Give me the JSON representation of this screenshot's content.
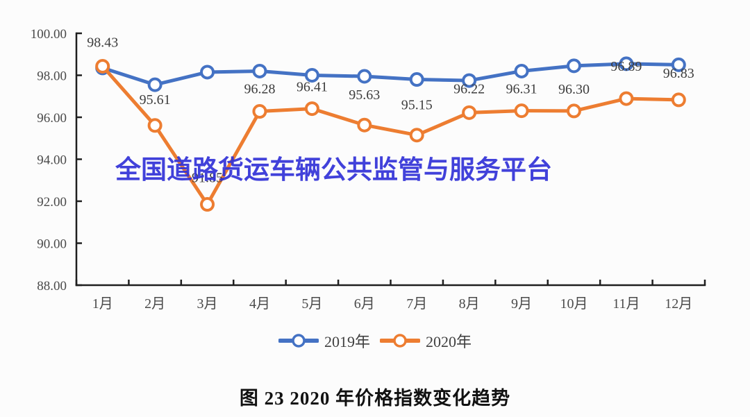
{
  "page": {
    "background": "#fcfcfc"
  },
  "watermark": {
    "text": "全国道路货运车辆公共监管与服务平台",
    "color": "#3232d8"
  },
  "caption": {
    "text": "图 23 2020 年价格指数变化趋势"
  },
  "legend": {
    "items": [
      {
        "label": "2019年",
        "color": "#4472c4"
      },
      {
        "label": "2020年",
        "color": "#ed7d31"
      }
    ]
  },
  "chart_data": {
    "type": "line",
    "title": "图 23 2020 年价格指数变化趋势",
    "categories": [
      "1月",
      "2月",
      "3月",
      "4月",
      "5月",
      "6月",
      "7月",
      "8月",
      "9月",
      "10月",
      "11月",
      "12月"
    ],
    "series": [
      {
        "name": "2019年",
        "color": "#4472c4",
        "values": [
          98.35,
          97.55,
          98.15,
          98.2,
          98.0,
          97.95,
          97.8,
          97.75,
          98.2,
          98.45,
          98.55,
          98.5
        ],
        "values_estimated_from_pixels": true,
        "data_labels": null
      },
      {
        "name": "2020年",
        "color": "#ed7d31",
        "values": [
          98.43,
          95.61,
          91.85,
          96.28,
          96.41,
          95.63,
          95.15,
          96.22,
          96.31,
          96.3,
          96.89,
          96.83
        ],
        "data_labels": [
          "98.43",
          "95.61",
          "91.85",
          "96.28",
          "96.41",
          "95.63",
          "95.15",
          "96.22",
          "96.31",
          "96.30",
          "96.89",
          "96.83"
        ]
      }
    ],
    "ylim": [
      88,
      100
    ],
    "ytick_step": 2,
    "ytick_labels": [
      "88.00",
      "90.00",
      "92.00",
      "94.00",
      "96.00",
      "98.00",
      "100.00"
    ],
    "xlabel": "",
    "ylabel": "",
    "grid": false,
    "legend_position": "bottom",
    "marker": "circle-open",
    "label_dy": [
      -35,
      -38,
      -39,
      -33,
      -32,
      -44,
      -44,
      -35,
      -32,
      -32,
      -47,
      -39
    ]
  },
  "style": {
    "axis_color": "#1f1f1f",
    "tick_label_color": "#4a4a4a",
    "data_label_color": "#3d3d3d",
    "legend_text_color": "#404040"
  }
}
